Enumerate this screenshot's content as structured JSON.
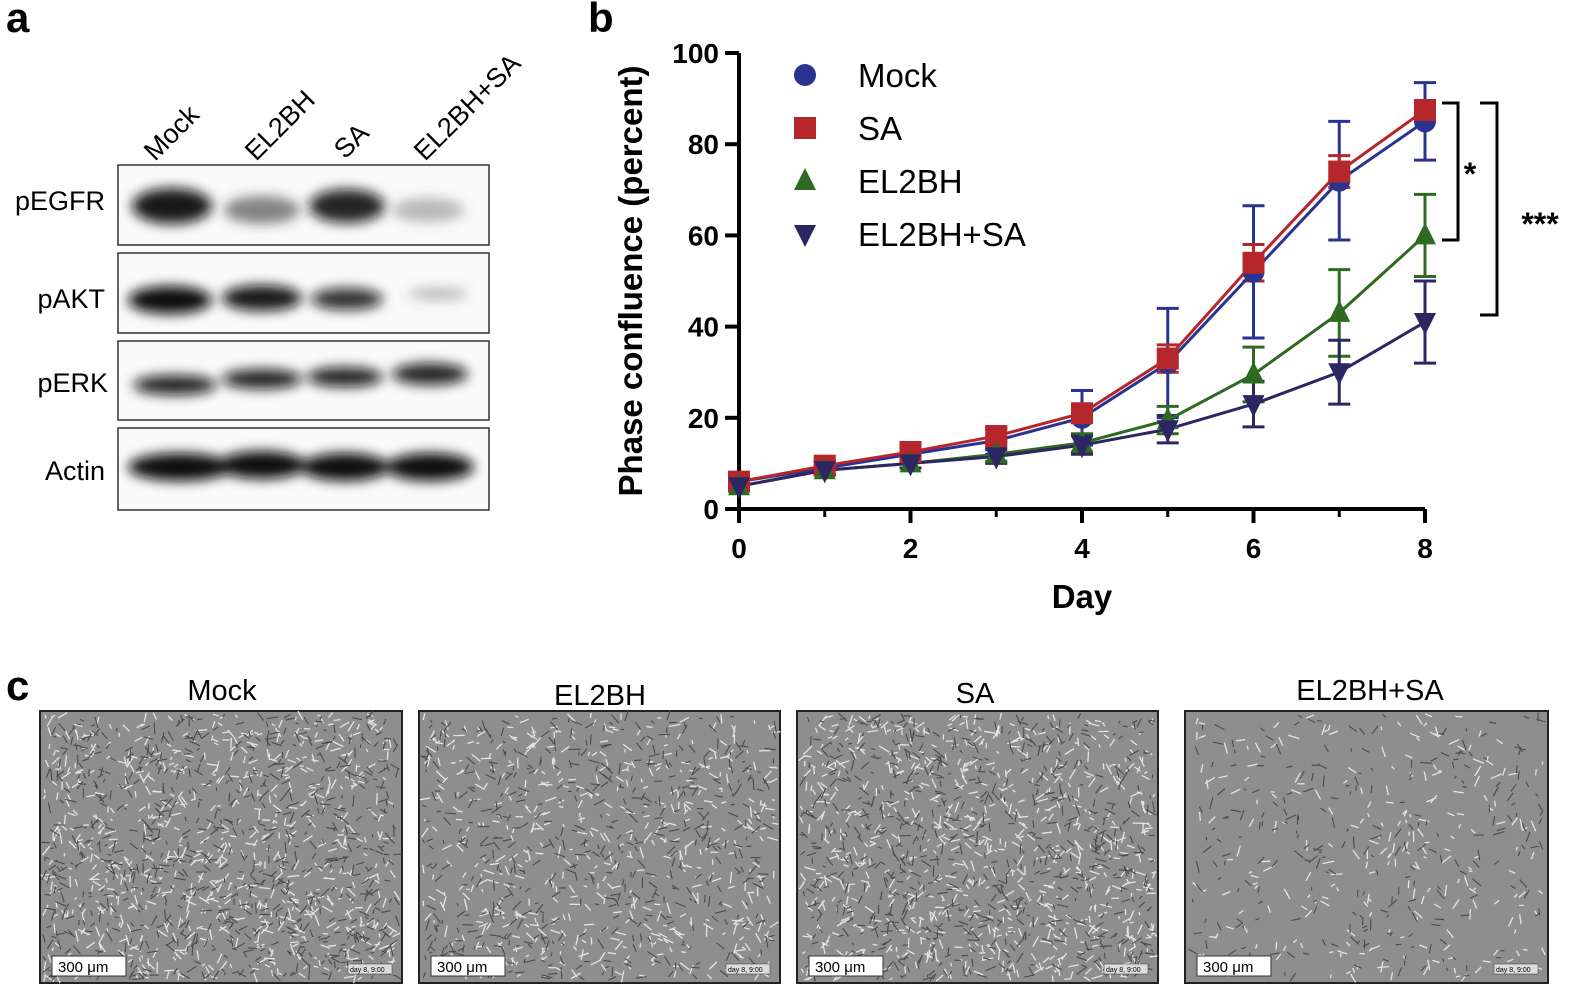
{
  "panel_labels": [
    "a",
    "b",
    "c"
  ],
  "blot": {
    "lanes": [
      "Mock",
      "EL2BH",
      "SA",
      "EL2BH+SA"
    ],
    "rows": [
      "pEGFR",
      "pAKT",
      "pERK",
      "Actin"
    ]
  },
  "chart_data": {
    "type": "line",
    "xlabel": "Day",
    "ylabel": "Phase confluence (percent)",
    "x": [
      0,
      1,
      2,
      3,
      4,
      5,
      6,
      7,
      8
    ],
    "xlim": [
      0,
      8
    ],
    "xticks": [
      0,
      2,
      4,
      6,
      8
    ],
    "ylim": [
      0,
      100
    ],
    "yticks": [
      0,
      20,
      40,
      60,
      80,
      100
    ],
    "legend": "upper left",
    "series": [
      {
        "name": "Mock",
        "color": "#2b3390",
        "marker": "circle",
        "values": [
          6,
          9,
          12,
          15,
          20,
          32,
          52,
          72,
          85
        ],
        "errors": [
          1.5,
          1.5,
          1.5,
          3,
          6,
          12,
          14.5,
          13,
          8.5
        ]
      },
      {
        "name": "SA",
        "color": "#b5272a",
        "marker": "square",
        "values": [
          6,
          9.5,
          12.5,
          16,
          21,
          33,
          54,
          74,
          87.5
        ],
        "errors": [
          1,
          1,
          1,
          1.5,
          2,
          3,
          4,
          3.5,
          2
        ]
      },
      {
        "name": "EL2BH",
        "color": "#2f6a22",
        "marker": "triangle",
        "values": [
          5,
          8.5,
          10,
          12,
          14.5,
          19.5,
          29.5,
          43,
          60
        ],
        "errors": [
          1,
          1,
          1,
          1.5,
          2,
          3,
          6,
          9.5,
          9
        ]
      },
      {
        "name": "EL2BH+SA",
        "color": "#2c2762",
        "marker": "triangle-down",
        "values": [
          5,
          8.5,
          10,
          11.5,
          14,
          17.5,
          23,
          30,
          41
        ],
        "errors": [
          1,
          1,
          1,
          1.5,
          2,
          3,
          5,
          7,
          9
        ]
      }
    ],
    "annotations": [
      "*",
      "***"
    ]
  },
  "micrographs": {
    "titles": [
      "Mock",
      "EL2BH",
      "SA",
      "EL2BH+SA"
    ],
    "scale_bar": "300 μm",
    "timestamp": "day 8, 9:00"
  }
}
